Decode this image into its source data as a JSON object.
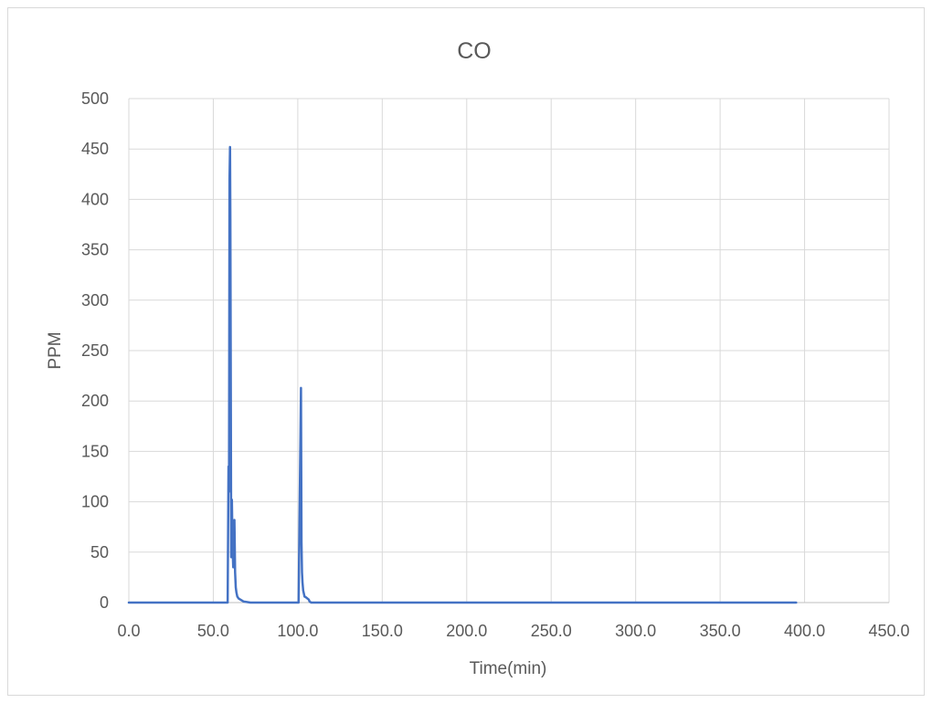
{
  "chart_data": {
    "type": "line",
    "title": "CO",
    "xlabel": "Time(min)",
    "ylabel": "PPM",
    "xlim": [
      0,
      450
    ],
    "ylim": [
      0,
      500
    ],
    "x_ticks": [
      0,
      50,
      100,
      150,
      200,
      250,
      300,
      350,
      400,
      450
    ],
    "x_tick_labels": [
      "0.0",
      "50.0",
      "100.0",
      "150.0",
      "200.0",
      "250.0",
      "300.0",
      "350.0",
      "400.0",
      "450.0"
    ],
    "y_ticks": [
      0,
      50,
      100,
      150,
      200,
      250,
      300,
      350,
      400,
      450,
      500
    ],
    "y_tick_labels": [
      "0",
      "50",
      "100",
      "150",
      "200",
      "250",
      "300",
      "350",
      "400",
      "450",
      "500"
    ],
    "grid": true,
    "legend": "none",
    "line_color": "#4472c4",
    "series": [
      {
        "x": [
          0,
          58.5,
          59.0,
          59.3,
          59.6,
          59.9,
          60.1,
          60.3,
          60.6,
          61.0,
          61.4,
          61.8,
          62.1,
          62.5,
          62.9,
          63.3,
          63.7,
          64.2,
          65,
          66,
          68,
          72,
          100.5,
          101.2,
          101.6,
          101.9,
          102.2,
          102.5,
          102.8,
          103.2,
          104,
          105,
          106.5,
          107,
          108,
          200,
          300,
          395
        ],
        "y": [
          0,
          0,
          135,
          110,
          420,
          452,
          380,
          250,
          45,
          102,
          55,
          35,
          40,
          82,
          30,
          15,
          10,
          6,
          4,
          3,
          1,
          0,
          0,
          110,
          165,
          213,
          60,
          30,
          20,
          12,
          6,
          5,
          3,
          1,
          0,
          0,
          0,
          0
        ]
      }
    ]
  }
}
